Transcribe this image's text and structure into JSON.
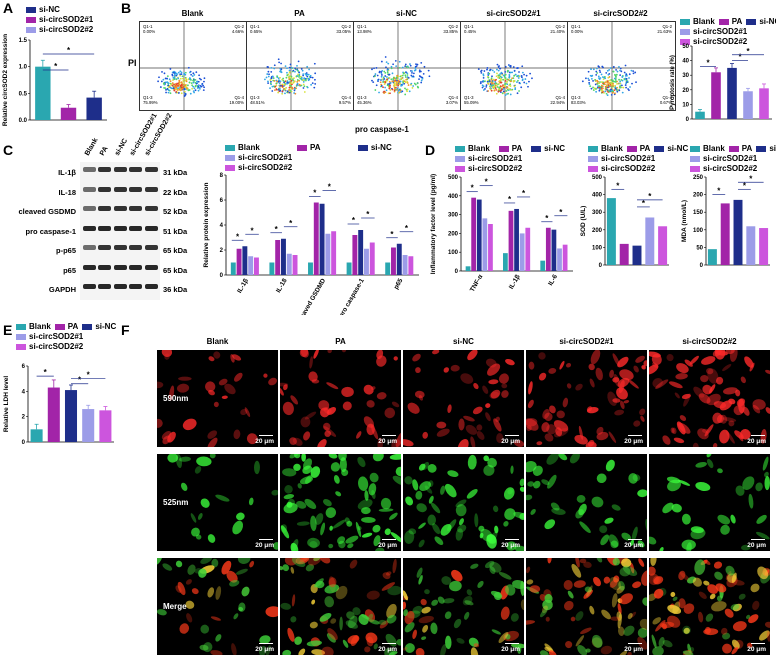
{
  "panels": {
    "A": "A",
    "B": "B",
    "C": "C",
    "D": "D",
    "E": "E",
    "F": "F"
  },
  "colors": {
    "blank": "#2aa7b0",
    "pa": "#a224a8",
    "sinc": "#1e2e8a",
    "s1": "#9c9ce8",
    "s2": "#cc55dd"
  },
  "panelA": {
    "legend": [
      "si-NC",
      "si-circSOD2#1",
      "si-circSOD2#2"
    ],
    "chart_data": {
      "type": "bar",
      "categories": [
        "si-NC",
        "si-circSOD2#1",
        "si-circSOD2#2"
      ],
      "values": [
        1.0,
        0.23,
        0.42
      ],
      "errors": [
        0.12,
        0.06,
        0.12
      ],
      "ylabel": "Relative circSOD2 expression",
      "ylim": [
        0,
        1.5
      ],
      "yticks": [
        "0.0",
        "0.5",
        "1.0",
        "1.5"
      ]
    }
  },
  "panelB": {
    "titles": [
      "Blank",
      "PA",
      "si-NC",
      "si-circSOD2#1",
      "si-circSOD2#2"
    ],
    "ylabel": "PI",
    "xlabel": "pro caspase-1",
    "quadrants": [
      {
        "q1": "Q1-1",
        "v1": "0.00%",
        "q2": "Q1-2",
        "v2": "4.66%",
        "q3": "Q1-3",
        "v3": "75.99%",
        "q4": "Q1-4",
        "v4": "19.00%"
      },
      {
        "q1": "Q1-1",
        "v1": "0.65%",
        "q2": "Q1-2",
        "v2": "33.05%",
        "q3": "Q1-3",
        "v3": "48.51%",
        "q4": "Q1-4",
        "v4": "9.57%"
      },
      {
        "q1": "Q1-1",
        "v1": "13.98%",
        "q2": "Q1-2",
        "v2": "33.85%",
        "q3": "Q1-3",
        "v3": "45.36%",
        "q4": "Q1-4",
        "v4": "3.07%"
      },
      {
        "q1": "Q1-1",
        "v1": "0.45%",
        "q2": "Q1-2",
        "v2": "21.40%",
        "q3": "Q1-3",
        "v3": "55.09%",
        "q4": "Q1-4",
        "v4": "22.94%"
      },
      {
        "q1": "Q1-1",
        "v1": "0.00%",
        "q2": "Q1-2",
        "v2": "21.63%",
        "q3": "Q1-3",
        "v3": "83.03%",
        "q4": "Q1-4",
        "v4": "0.67%"
      }
    ],
    "legend": [
      "Blank",
      "PA",
      "si-NC",
      "si-circSOD2#1",
      "si-circSOD2#2"
    ],
    "chart_data": {
      "type": "bar",
      "categories": [
        "Blank",
        "PA",
        "si-NC",
        "si-circSOD2#1",
        "si-circSOD2#2"
      ],
      "values": [
        5,
        32,
        35,
        19,
        21
      ],
      "errors": [
        1.5,
        3,
        3,
        2,
        3
      ],
      "ylabel": "Pyroptosis rate (%)",
      "ylim": [
        0,
        50
      ],
      "yticks": [
        "0",
        "10",
        "20",
        "30",
        "40",
        "50"
      ]
    }
  },
  "panelC": {
    "lanes": [
      "Blank",
      "PA",
      "si-NC",
      "si-circSOD2#1",
      "si-circSOD2#2"
    ],
    "blots": [
      {
        "name": "IL-1β",
        "kda": "31 kDa"
      },
      {
        "name": "IL-18",
        "kda": "22 kDa"
      },
      {
        "name": "cleaved GSDMD",
        "kda": "52 kDa"
      },
      {
        "name": "pro caspase-1",
        "kda": "51 kDa"
      },
      {
        "name": "p-p65",
        "kda": "65 kDa"
      },
      {
        "name": "p65",
        "kda": "65 kDa"
      },
      {
        "name": "GAPDH",
        "kda": "36 kDa"
      }
    ],
    "legend": [
      "Blank",
      "PA",
      "si-NC",
      "si-circSOD2#1",
      "si-circSOD2#2"
    ],
    "chart_data": {
      "type": "bar",
      "categories": [
        "IL-1β",
        "IL-18",
        "cleaved GSDMD",
        "pro caspase-1",
        "p65"
      ],
      "series": [
        {
          "name": "Blank",
          "values": [
            1.0,
            1.0,
            1.0,
            1.0,
            1.0
          ]
        },
        {
          "name": "PA",
          "values": [
            2.1,
            2.8,
            5.8,
            3.2,
            2.2
          ]
        },
        {
          "name": "si-NC",
          "values": [
            2.3,
            2.9,
            5.7,
            3.6,
            2.5
          ]
        },
        {
          "name": "si-circSOD2#1",
          "values": [
            1.5,
            1.7,
            3.3,
            2.1,
            1.6
          ]
        },
        {
          "name": "si-circSOD2#2",
          "values": [
            1.4,
            1.6,
            3.5,
            2.6,
            1.5
          ]
        }
      ],
      "ylabel": "Relative protein expression",
      "ylim": [
        0,
        8
      ],
      "yticks": [
        "0",
        "2",
        "4",
        "6",
        "8"
      ]
    }
  },
  "panelD": {
    "legend": [
      "Blank",
      "PA",
      "si-NC",
      "si-circSOD2#1",
      "si-circSOD2#2"
    ],
    "chart_data": [
      {
        "type": "bar",
        "categories": [
          "TNF-α",
          "IL-1β",
          "IL-6"
        ],
        "series": [
          {
            "name": "Blank",
            "values": [
              25,
              95,
              55
            ]
          },
          {
            "name": "PA",
            "values": [
              390,
              320,
              230
            ]
          },
          {
            "name": "si-NC",
            "values": [
              380,
              330,
              220
            ]
          },
          {
            "name": "si-circSOD2#1",
            "values": [
              280,
              200,
              120
            ]
          },
          {
            "name": "si-circSOD2#2",
            "values": [
              250,
              230,
              140
            ]
          }
        ],
        "ylabel": "Inflammatory factor level (pg/ml)",
        "ylim": [
          0,
          500
        ],
        "yticks": [
          "0",
          "100",
          "200",
          "300",
          "400",
          "500"
        ]
      },
      {
        "type": "bar",
        "categories": [
          "Blank",
          "PA",
          "si-NC",
          "si-circSOD2#1",
          "si-circSOD2#2"
        ],
        "values": [
          380,
          120,
          110,
          270,
          220
        ],
        "ylabel": "SOD (U/L)",
        "ylim": [
          0,
          500
        ],
        "yticks": [
          "0",
          "100",
          "200",
          "300",
          "400",
          "500"
        ]
      },
      {
        "type": "bar",
        "categories": [
          "Blank",
          "PA",
          "si-NC",
          "si-circSOD2#1",
          "si-circSOD2#2"
        ],
        "values": [
          45,
          175,
          185,
          110,
          105
        ],
        "ylabel": "MDA (nmol/L)",
        "ylim": [
          0,
          250
        ],
        "yticks": [
          "0",
          "50",
          "100",
          "150",
          "200",
          "250"
        ]
      }
    ]
  },
  "panelE": {
    "legend": [
      "Blank",
      "PA",
      "si-NC",
      "si-circSOD2#1",
      "si-circSOD2#2"
    ],
    "chart_data": {
      "type": "bar",
      "categories": [
        "Blank",
        "PA",
        "si-NC",
        "si-circSOD2#1",
        "si-circSOD2#2"
      ],
      "values": [
        1.0,
        4.3,
        4.1,
        2.6,
        2.5
      ],
      "errors": [
        0.4,
        0.6,
        0.4,
        0.3,
        0.3
      ],
      "ylabel": "Relative LDH level",
      "ylim": [
        0,
        6
      ],
      "yticks": [
        "0",
        "2",
        "4",
        "6"
      ]
    }
  },
  "panelF": {
    "columns": [
      "Blank",
      "PA",
      "si-NC",
      "si-circSOD2#1",
      "si-circSOD2#2"
    ],
    "rows": [
      "590nm",
      "525nm",
      "Merge"
    ],
    "scale": "20 μm"
  },
  "sig": "*"
}
